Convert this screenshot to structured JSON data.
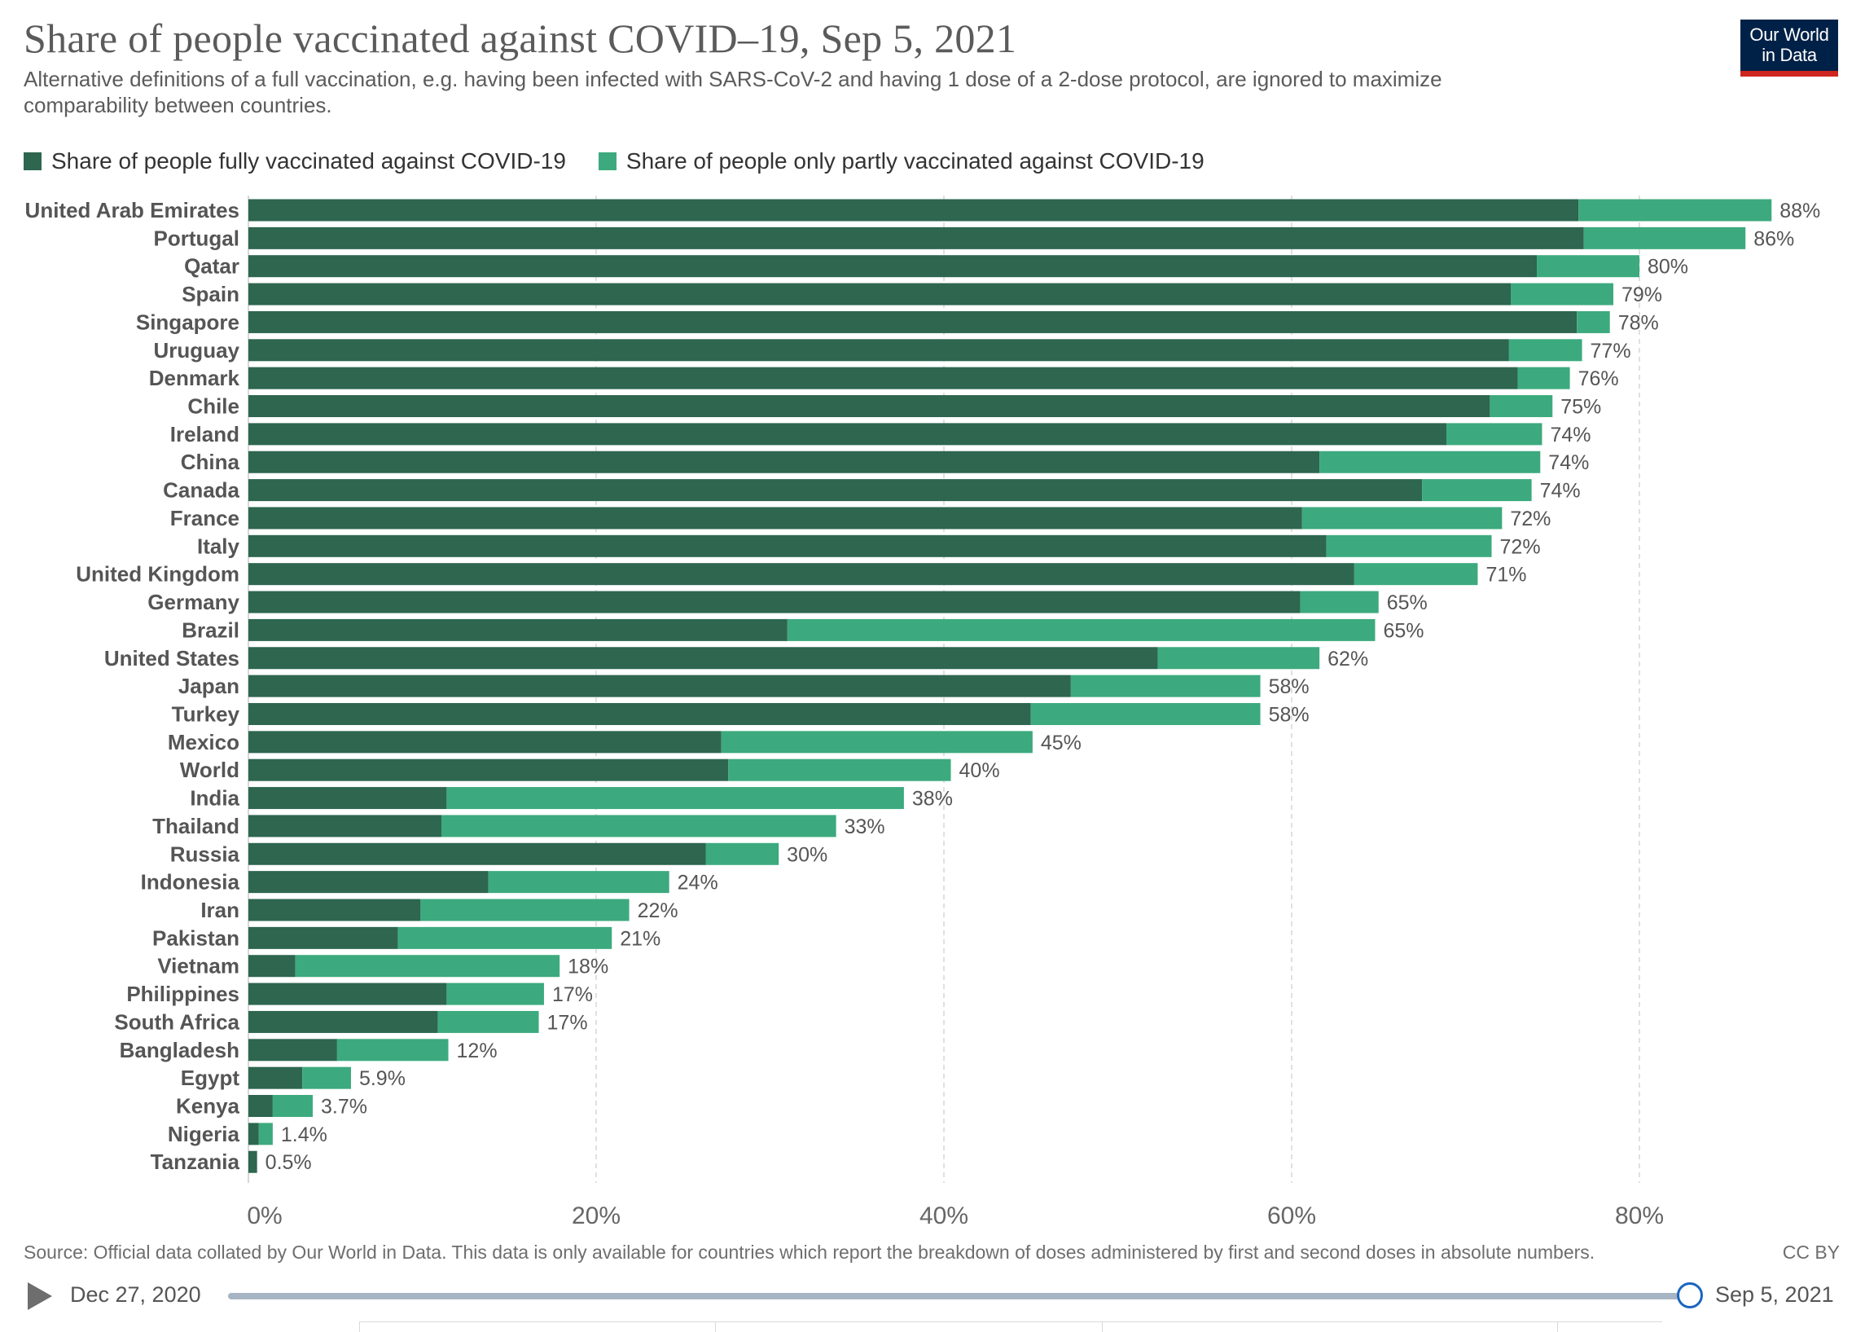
{
  "title": "Share of people vaccinated against COVID–19, Sep 5, 2021",
  "subtitle": "Alternative definitions of a full vaccination, e.g. having been infected with SARS-CoV-2 and having 1 dose of a 2-dose protocol, are ignored to maximize comparability between countries.",
  "logo": {
    "line1": "Our World",
    "line2": "in Data"
  },
  "colors": {
    "full": "#2e6650",
    "partial": "#3caa7e",
    "grid": "#d6d6d6",
    "logo_bg": "#002147",
    "logo_bar": "#ce261e"
  },
  "legend": [
    {
      "label": "Share of people fully vaccinated against COVID-19",
      "color": "#2e6650"
    },
    {
      "label": "Share of people only partly vaccinated against COVID-19",
      "color": "#3caa7e"
    }
  ],
  "chart_data": {
    "type": "bar",
    "orientation": "horizontal",
    "stacked": true,
    "categories": [
      "United Arab Emirates",
      "Portugal",
      "Qatar",
      "Spain",
      "Singapore",
      "Uruguay",
      "Denmark",
      "Chile",
      "Ireland",
      "China",
      "Canada",
      "France",
      "Italy",
      "United Kingdom",
      "Germany",
      "Brazil",
      "United States",
      "Japan",
      "Turkey",
      "Mexico",
      "World",
      "India",
      "Thailand",
      "Russia",
      "Indonesia",
      "Iran",
      "Pakistan",
      "Vietnam",
      "Philippines",
      "South Africa",
      "Bangladesh",
      "Egypt",
      "Kenya",
      "Nigeria",
      "Tanzania"
    ],
    "series": [
      {
        "name": "Share of people fully vaccinated against COVID-19",
        "values": [
          76.5,
          76.8,
          74.1,
          72.6,
          76.4,
          72.5,
          73.0,
          71.4,
          68.9,
          61.6,
          67.5,
          60.6,
          62.0,
          63.6,
          60.5,
          31.0,
          52.3,
          47.3,
          45.0,
          27.2,
          27.6,
          11.4,
          11.1,
          26.3,
          13.8,
          9.9,
          8.6,
          2.7,
          11.4,
          10.9,
          5.1,
          3.1,
          1.4,
          0.6,
          0.5
        ]
      },
      {
        "name": "Share of people only partly vaccinated against COVID-19",
        "values": [
          11.1,
          9.3,
          5.9,
          5.9,
          1.9,
          4.2,
          3.0,
          3.6,
          5.5,
          12.7,
          6.3,
          11.5,
          9.5,
          7.1,
          4.5,
          33.8,
          9.3,
          10.9,
          13.2,
          17.9,
          12.8,
          26.3,
          22.7,
          4.2,
          10.4,
          12.0,
          12.3,
          15.2,
          5.6,
          5.8,
          6.4,
          2.8,
          2.3,
          0.8,
          0
        ]
      }
    ],
    "value_labels": [
      "88%",
      "86%",
      "80%",
      "79%",
      "78%",
      "77%",
      "76%",
      "75%",
      "74%",
      "74%",
      "74%",
      "72%",
      "72%",
      "71%",
      "65%",
      "65%",
      "62%",
      "58%",
      "58%",
      "45%",
      "40%",
      "38%",
      "33%",
      "30%",
      "24%",
      "22%",
      "21%",
      "18%",
      "17%",
      "17%",
      "12%",
      "5.9%",
      "3.7%",
      "1.4%",
      "0.5%"
    ],
    "xlim": [
      0,
      88
    ],
    "xticks": [
      0,
      20,
      40,
      60,
      80
    ],
    "xtick_labels": [
      "0%",
      "20%",
      "40%",
      "60%",
      "80%"
    ],
    "grid": true,
    "legend_position": "top-left"
  },
  "source": "Source: Official data collated by Our World in Data. This data is only available for countries which report the breakdown of doses administered by first and second doses in absolute numbers.",
  "license": "CC BY",
  "timeline": {
    "start": "Dec 27, 2020",
    "end": "Sep 5, 2021",
    "position": 1.0
  }
}
